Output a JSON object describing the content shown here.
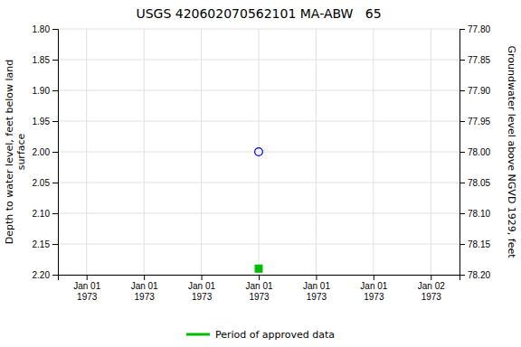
{
  "chart_data": {
    "type": "scatter",
    "title": "USGS 420602070562101 MA-ABW   65",
    "y_label": "Depth to water level, feet below land\nsurface",
    "y2_label": "Groundwater level above NGVD 1929, feet",
    "categories": [
      "Jan 01\n1973",
      "Jan 01\n1973",
      "Jan 01\n1973",
      "Jan 01\n1973",
      "Jan 01\n1973",
      "Jan 01\n1973",
      "Jan 02\n1973"
    ],
    "series": [
      {
        "values": [
          null,
          null,
          null,
          2.0,
          null,
          null,
          null
        ],
        "color": "blue",
        "marker": "circle-open"
      },
      {
        "name": "Period of approved data",
        "values": [
          null,
          null,
          null,
          2.19,
          null,
          null,
          null
        ],
        "color": "#00bb00",
        "marker": "square"
      }
    ],
    "ylim": [
      2.2,
      1.8
    ],
    "yticks": [
      {
        "value": 1.8,
        "label": "1.80"
      },
      1.85,
      {
        "value": 1.9,
        "label": "1.90"
      },
      1.95,
      {
        "value": 2.0,
        "label": "2.00"
      },
      2.05,
      {
        "value": 2.1,
        "label": "2.10"
      },
      2.15,
      {
        "value": 2.2,
        "label": "2.20"
      }
    ],
    "y2lim": [
      78.2,
      77.8
    ],
    "y2ticks": [
      {
        "value": 77.8,
        "label": "77.80"
      },
      77.85,
      {
        "value": 77.9,
        "label": "77.90"
      },
      77.95,
      {
        "value": 78.0,
        "label": "78.00"
      },
      78.05,
      {
        "value": 78.1,
        "label": "78.10"
      },
      78.15,
      {
        "value": 78.2,
        "label": "78.20"
      }
    ],
    "grid": true,
    "legend": "bottom"
  }
}
